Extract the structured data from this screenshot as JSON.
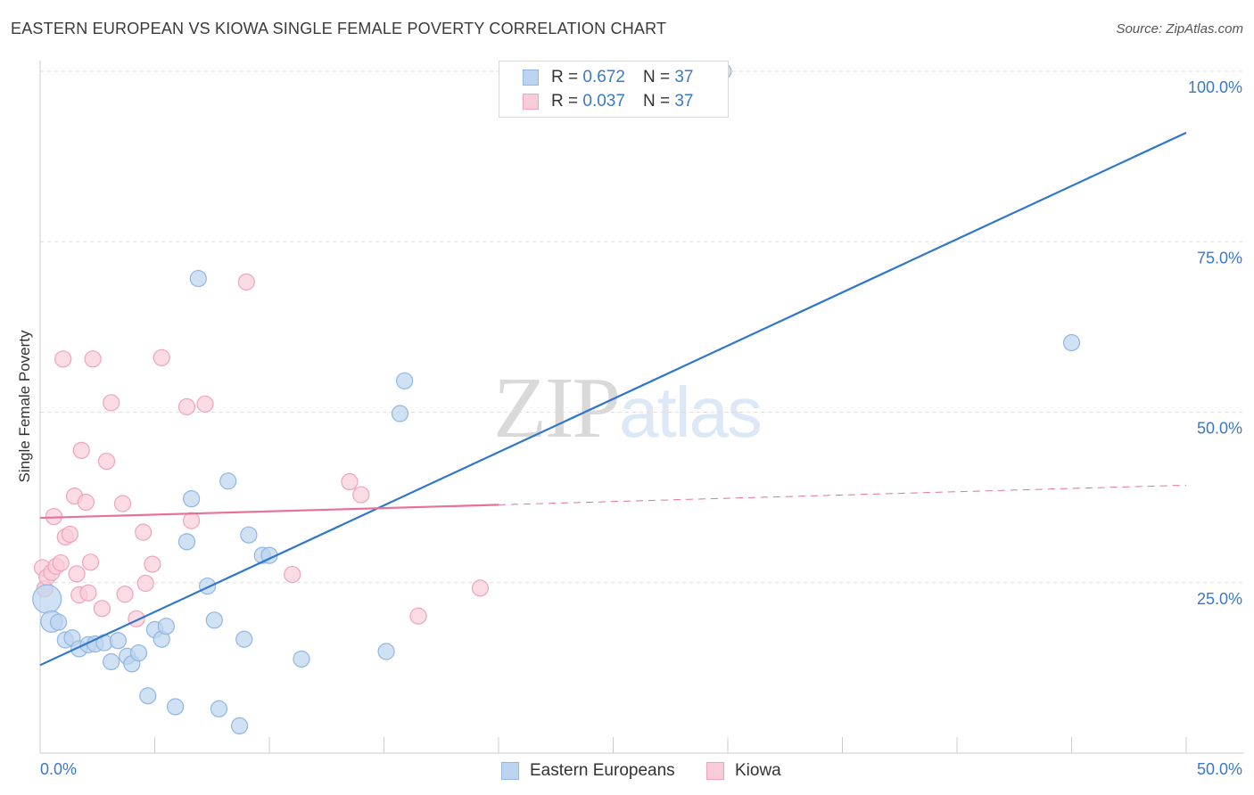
{
  "header": {
    "title": "EASTERN EUROPEAN VS KIOWA SINGLE FEMALE POVERTY CORRELATION CHART",
    "source": "Source: ZipAtlas.com"
  },
  "watermark": {
    "part1": "ZIP",
    "part2": "atlas"
  },
  "legend": {
    "rows": [
      {
        "r_label": "R =",
        "r_value": "0.672",
        "n_label": "N =",
        "n_value": "37"
      },
      {
        "r_label": "R =",
        "r_value": "0.037",
        "n_label": "N =",
        "n_value": "37"
      }
    ]
  },
  "colors": {
    "blue_fill": "#bcd4f0",
    "blue_stroke": "#8fb6e6",
    "blue_line": "#2f76cc",
    "pink_fill": "#f9ccd9",
    "pink_stroke": "#f0a3bb",
    "pink_line": "#e8709a",
    "axis_text": "#3a78c9"
  },
  "chart_data": {
    "type": "scatter",
    "title": "EASTERN EUROPEAN VS KIOWA SINGLE FEMALE POVERTY CORRELATION CHART",
    "xlabel": "",
    "ylabel": "Single Female Poverty",
    "xlim": [
      0,
      50
    ],
    "ylim": [
      0,
      100
    ],
    "x_tick_labels": [
      "0.0%",
      "50.0%"
    ],
    "y_tick_values": [
      25,
      50,
      75,
      100
    ],
    "y_tick_labels": [
      "25.0%",
      "50.0%",
      "75.0%",
      "100.0%"
    ],
    "grid": true,
    "series": [
      {
        "name": "Eastern Europeans",
        "r": 0.672,
        "n": 37,
        "trend": {
          "x0": 0,
          "y0": 12.9,
          "x1": 50,
          "y1": 91.0,
          "dashed_from": null
        },
        "points": [
          [
            0.3,
            22.6,
            16
          ],
          [
            0.5,
            19.3,
            12
          ],
          [
            0.8,
            19.2,
            9
          ],
          [
            1.1,
            16.6,
            9
          ],
          [
            1.4,
            16.9,
            9
          ],
          [
            1.7,
            15.3,
            9
          ],
          [
            2.1,
            15.9,
            9
          ],
          [
            2.4,
            16.0,
            9
          ],
          [
            2.8,
            16.2,
            9
          ],
          [
            3.1,
            13.4,
            9
          ],
          [
            3.4,
            16.5,
            9
          ],
          [
            3.8,
            14.2,
            9
          ],
          [
            4.0,
            13.1,
            9
          ],
          [
            4.3,
            14.7,
            9
          ],
          [
            4.7,
            8.4,
            9
          ],
          [
            5.0,
            18.1,
            9
          ],
          [
            5.3,
            16.7,
            9
          ],
          [
            5.5,
            18.6,
            9
          ],
          [
            5.9,
            6.8,
            9
          ],
          [
            6.4,
            31.0,
            9
          ],
          [
            6.6,
            37.3,
            9
          ],
          [
            6.9,
            69.6,
            9
          ],
          [
            7.3,
            24.5,
            9
          ],
          [
            7.6,
            19.5,
            9
          ],
          [
            7.8,
            6.5,
            9
          ],
          [
            8.2,
            39.9,
            9
          ],
          [
            8.7,
            4.0,
            9
          ],
          [
            8.9,
            16.7,
            9
          ],
          [
            9.1,
            32.0,
            9
          ],
          [
            9.7,
            29.0,
            9
          ],
          [
            10.0,
            29.0,
            9
          ],
          [
            11.4,
            13.8,
            9
          ],
          [
            15.1,
            14.9,
            9
          ],
          [
            15.7,
            49.8,
            9
          ],
          [
            15.9,
            54.6,
            9
          ],
          [
            29.8,
            100.0,
            9
          ],
          [
            45.0,
            60.2,
            9
          ]
        ]
      },
      {
        "name": "Kiowa",
        "r": 0.037,
        "n": 37,
        "trend": {
          "x0": 0,
          "y0": 34.5,
          "x1": 50,
          "y1": 39.3,
          "dashed_from": 20
        },
        "points": [
          [
            0.1,
            27.2,
            9
          ],
          [
            0.2,
            24.1,
            9
          ],
          [
            0.3,
            25.8,
            9
          ],
          [
            0.5,
            26.5,
            9
          ],
          [
            0.6,
            34.7,
            9
          ],
          [
            0.7,
            27.4,
            9
          ],
          [
            0.9,
            27.9,
            9
          ],
          [
            1.0,
            57.8,
            9
          ],
          [
            1.1,
            31.7,
            9
          ],
          [
            1.3,
            32.1,
            9
          ],
          [
            1.5,
            37.7,
            9
          ],
          [
            1.6,
            26.3,
            9
          ],
          [
            1.7,
            23.2,
            9
          ],
          [
            1.8,
            44.4,
            9
          ],
          [
            2.0,
            36.8,
            9
          ],
          [
            2.1,
            23.5,
            9
          ],
          [
            2.2,
            28.0,
            9
          ],
          [
            2.3,
            57.8,
            9
          ],
          [
            2.7,
            21.2,
            9
          ],
          [
            2.9,
            42.8,
            9
          ],
          [
            3.1,
            51.4,
            9
          ],
          [
            3.6,
            36.6,
            9
          ],
          [
            3.7,
            23.3,
            9
          ],
          [
            4.2,
            19.7,
            9
          ],
          [
            4.5,
            32.4,
            9
          ],
          [
            4.6,
            24.9,
            9
          ],
          [
            4.9,
            27.7,
            9
          ],
          [
            5.3,
            58.0,
            9
          ],
          [
            6.4,
            50.8,
            9
          ],
          [
            6.6,
            34.1,
            9
          ],
          [
            7.2,
            51.2,
            9
          ],
          [
            9.0,
            69.1,
            9
          ],
          [
            11.0,
            26.2,
            9
          ],
          [
            13.5,
            39.8,
            9
          ],
          [
            14.0,
            37.9,
            9
          ],
          [
            16.5,
            20.1,
            9
          ],
          [
            19.2,
            24.2,
            9
          ]
        ]
      }
    ]
  }
}
